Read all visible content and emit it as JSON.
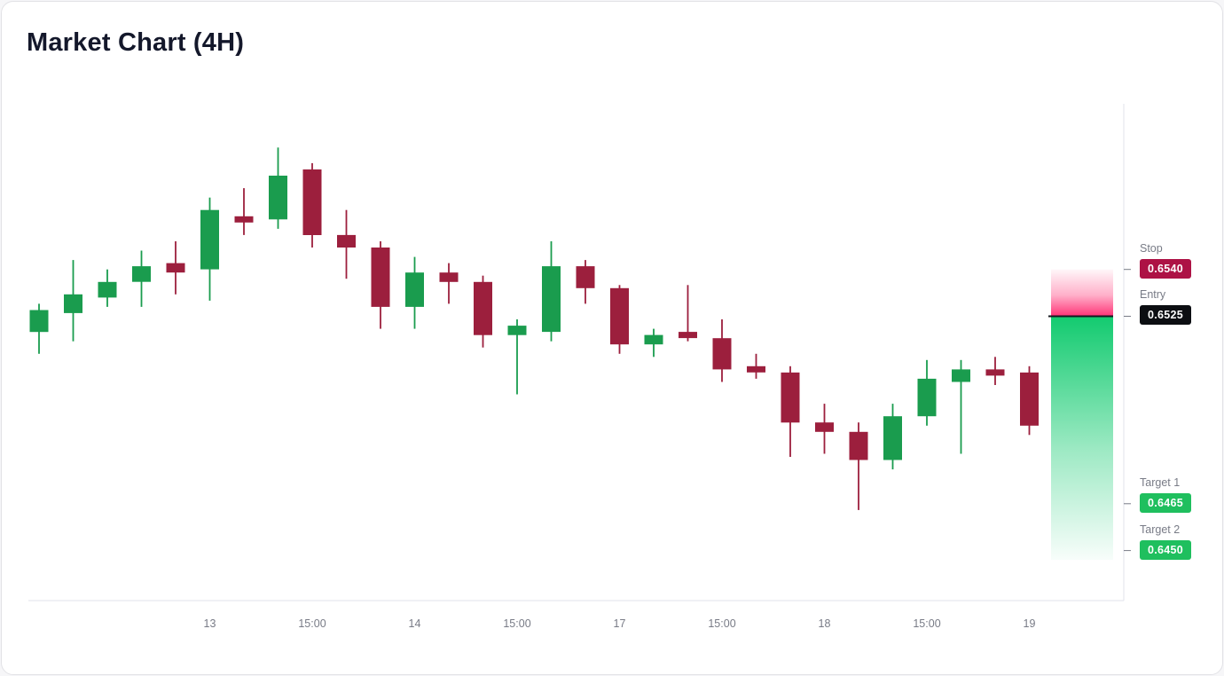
{
  "title": "Market Chart (4H)",
  "chart_data": {
    "type": "candlestick",
    "timeframe": "4H",
    "price_axis": {
      "min": 0.6434,
      "max": 0.6593
    },
    "x_labels": [
      {
        "i": 5,
        "t": "13"
      },
      {
        "i": 8,
        "t": "15:00"
      },
      {
        "i": 11,
        "t": "14"
      },
      {
        "i": 14,
        "t": "15:00"
      },
      {
        "i": 17,
        "t": "17"
      },
      {
        "i": 20,
        "t": "15:00"
      },
      {
        "i": 23,
        "t": "18"
      },
      {
        "i": 26,
        "t": "15:00"
      },
      {
        "i": 29,
        "t": "19"
      }
    ],
    "candles": [
      [
        0.652,
        0.6529,
        0.6513,
        0.6527
      ],
      [
        0.6526,
        0.6543,
        0.6517,
        0.6532
      ],
      [
        0.6531,
        0.654,
        0.6528,
        0.6536
      ],
      [
        0.6536,
        0.6546,
        0.6528,
        0.6541
      ],
      [
        0.6542,
        0.6549,
        0.6532,
        0.6539
      ],
      [
        0.654,
        0.6563,
        0.653,
        0.6559
      ],
      [
        0.6557,
        0.6566,
        0.6551,
        0.6555
      ],
      [
        0.6556,
        0.6579,
        0.6553,
        0.657
      ],
      [
        0.6572,
        0.6574,
        0.6547,
        0.6551
      ],
      [
        0.6551,
        0.6559,
        0.6537,
        0.6547
      ],
      [
        0.6547,
        0.6549,
        0.6521,
        0.6528
      ],
      [
        0.6528,
        0.6544,
        0.6521,
        0.6539
      ],
      [
        0.6539,
        0.6542,
        0.6529,
        0.6536
      ],
      [
        0.6536,
        0.6538,
        0.6515,
        0.6519
      ],
      [
        0.6519,
        0.6524,
        0.65,
        0.6522
      ],
      [
        0.652,
        0.6549,
        0.6517,
        0.6541
      ],
      [
        0.6541,
        0.6543,
        0.6529,
        0.6534
      ],
      [
        0.6534,
        0.6535,
        0.6513,
        0.6516
      ],
      [
        0.6516,
        0.6521,
        0.6512,
        0.6519
      ],
      [
        0.652,
        0.6535,
        0.6517,
        0.6518
      ],
      [
        0.6518,
        0.6524,
        0.6504,
        0.6508
      ],
      [
        0.6509,
        0.6513,
        0.6505,
        0.6507
      ],
      [
        0.6507,
        0.6509,
        0.648,
        0.6491
      ],
      [
        0.6491,
        0.6497,
        0.6481,
        0.6488
      ],
      [
        0.6488,
        0.6491,
        0.6463,
        0.6479
      ],
      [
        0.6479,
        0.6497,
        0.6476,
        0.6493
      ],
      [
        0.6493,
        0.6511,
        0.649,
        0.6505
      ],
      [
        0.6504,
        0.6511,
        0.6481,
        0.6508
      ],
      [
        0.6508,
        0.6512,
        0.6503,
        0.6506
      ],
      [
        0.6507,
        0.6509,
        0.6487,
        0.649
      ]
    ],
    "levels": {
      "stop": {
        "label": "Stop",
        "value": "0.6540",
        "price": 0.654,
        "color": "#ad1245"
      },
      "entry": {
        "label": "Entry",
        "value": "0.6525",
        "price": 0.6525,
        "color": "#0c0e12"
      },
      "target1": {
        "label": "Target 1",
        "value": "0.6465",
        "price": 0.6465,
        "color": "#1fbf5e"
      },
      "target2": {
        "label": "Target 2",
        "value": "0.6450",
        "price": 0.645,
        "color": "#1fbf5e"
      }
    },
    "zone": {
      "top_price": 0.654,
      "entry_price": 0.6525,
      "bottom_price": 0.6447
    },
    "colors": {
      "up": "#1a9c4e",
      "down": "#9c1f3d",
      "risk": "#ff2e72",
      "reward": "#0bc96b",
      "axis": "#e0e3eb",
      "tick_text": "#787b86",
      "entry_line": "#14181f"
    }
  }
}
